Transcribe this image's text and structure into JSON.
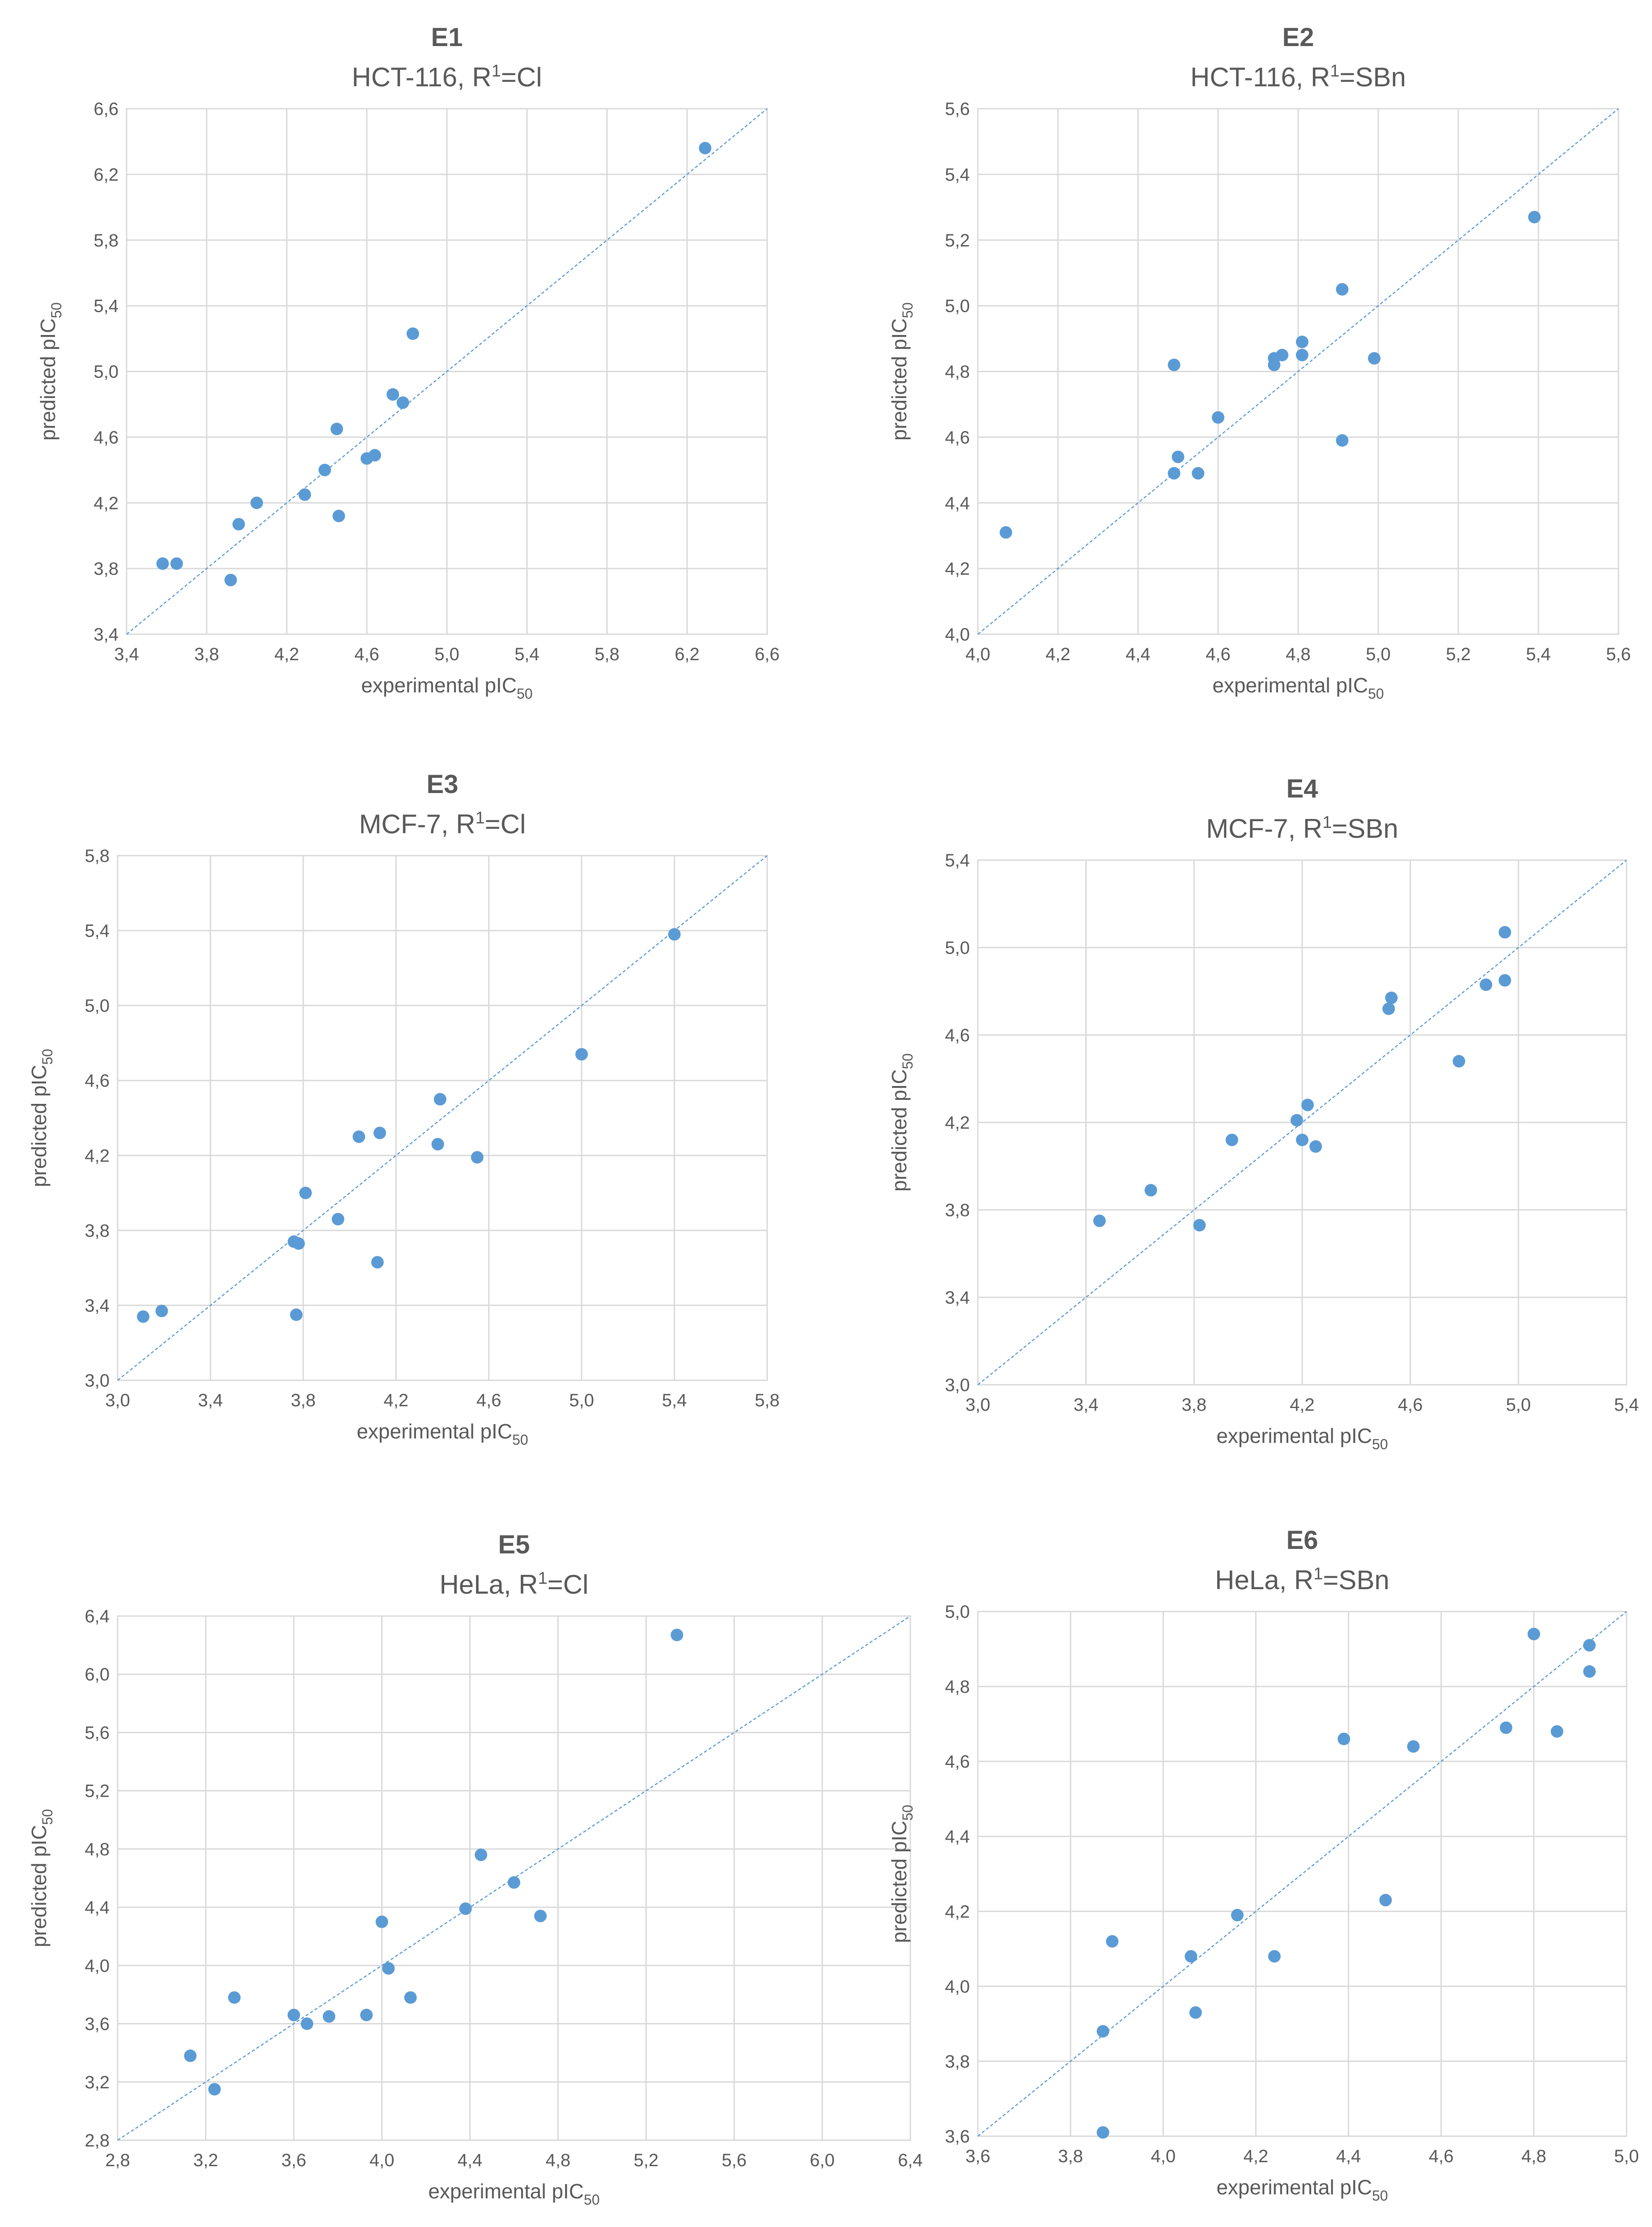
{
  "chart_data": [
    {
      "id": "E1",
      "subtitle_prefix": "HCT-116, R",
      "superscript": "1",
      "subtitle_suffix": "=Cl",
      "type": "scatter",
      "xlabel": "experimental pIC",
      "ylabel": "predicted pIC",
      "label_subscript": "50",
      "xlim": [
        3.4,
        6.6
      ],
      "ylim": [
        3.4,
        6.6
      ],
      "xticks": [
        "3,4",
        "3,8",
        "4,2",
        "4,6",
        "5,0",
        "5,4",
        "5,8",
        "6,2",
        "6,6"
      ],
      "yticks": [
        "3,4",
        "3,8",
        "4,2",
        "4,6",
        "5,0",
        "5,4",
        "5,8",
        "6,2",
        "6,6"
      ],
      "points": [
        [
          3.58,
          3.83
        ],
        [
          3.65,
          3.83
        ],
        [
          3.92,
          3.73
        ],
        [
          3.96,
          4.07
        ],
        [
          4.05,
          4.2
        ],
        [
          4.29,
          4.25
        ],
        [
          4.39,
          4.4
        ],
        [
          4.45,
          4.65
        ],
        [
          4.46,
          4.12
        ],
        [
          4.6,
          4.47
        ],
        [
          4.64,
          4.49
        ],
        [
          4.73,
          4.86
        ],
        [
          4.78,
          4.81
        ],
        [
          4.83,
          5.23
        ],
        [
          6.29,
          6.36
        ]
      ]
    },
    {
      "id": "E2",
      "subtitle_prefix": "HCT-116, R",
      "superscript": "1",
      "subtitle_suffix": "=SBn",
      "type": "scatter",
      "xlabel": "experimental pIC",
      "ylabel": "predicted pIC",
      "label_subscript": "50",
      "xlim": [
        4.0,
        5.6
      ],
      "ylim": [
        4.0,
        5.6
      ],
      "xticks": [
        "4,0",
        "4,2",
        "4,4",
        "4,6",
        "4,8",
        "5,0",
        "5,2",
        "5,4",
        "5,6"
      ],
      "yticks": [
        "4,0",
        "4,2",
        "4,4",
        "4,6",
        "4,8",
        "5,0",
        "5,2",
        "5,4",
        "5,6"
      ],
      "points": [
        [
          4.07,
          4.31
        ],
        [
          4.49,
          4.82
        ],
        [
          4.49,
          4.49
        ],
        [
          4.5,
          4.54
        ],
        [
          4.55,
          4.49
        ],
        [
          4.6,
          4.66
        ],
        [
          4.74,
          4.84
        ],
        [
          4.74,
          4.82
        ],
        [
          4.76,
          4.85
        ],
        [
          4.81,
          4.89
        ],
        [
          4.81,
          4.85
        ],
        [
          4.91,
          5.05
        ],
        [
          4.91,
          4.59
        ],
        [
          4.99,
          4.84
        ],
        [
          5.39,
          5.27
        ]
      ]
    },
    {
      "id": "E3",
      "subtitle_prefix": "MCF-7, R",
      "superscript": "1",
      "subtitle_suffix": "=Cl",
      "type": "scatter",
      "xlabel": "experimental pIC",
      "ylabel": "predicted pIC",
      "label_subscript": "50",
      "xlim": [
        3.0,
        5.8
      ],
      "ylim": [
        3.0,
        5.8
      ],
      "xticks": [
        "3,0",
        "3,4",
        "3,8",
        "4,2",
        "4,6",
        "5,0",
        "5,4",
        "5,8"
      ],
      "yticks": [
        "3,0",
        "3,4",
        "3,8",
        "4,2",
        "4,6",
        "5,0",
        "5,4",
        "5,8"
      ],
      "points": [
        [
          3.11,
          3.34
        ],
        [
          3.19,
          3.37
        ],
        [
          3.76,
          3.74
        ],
        [
          3.77,
          3.35
        ],
        [
          3.78,
          3.73
        ],
        [
          3.81,
          4.0
        ],
        [
          3.95,
          3.86
        ],
        [
          4.04,
          4.3
        ],
        [
          4.12,
          3.63
        ],
        [
          4.13,
          4.32
        ],
        [
          4.38,
          4.26
        ],
        [
          4.39,
          4.5
        ],
        [
          4.55,
          4.19
        ],
        [
          5.0,
          4.74
        ],
        [
          5.4,
          5.38
        ]
      ]
    },
    {
      "id": "E4",
      "subtitle_prefix": "MCF-7, R",
      "superscript": "1",
      "subtitle_suffix": "=SBn",
      "type": "scatter",
      "xlabel": "experimental pIC",
      "ylabel": "predicted pIC",
      "label_subscript": "50",
      "xlim": [
        3.0,
        5.4
      ],
      "ylim": [
        3.0,
        5.4
      ],
      "xticks": [
        "3,0",
        "3,4",
        "3,8",
        "4,2",
        "4,6",
        "5,0",
        "5,4"
      ],
      "yticks": [
        "3,0",
        "3,4",
        "3,8",
        "4,2",
        "4,6",
        "5,0",
        "5,4"
      ],
      "points": [
        [
          3.45,
          3.75
        ],
        [
          3.64,
          3.89
        ],
        [
          3.82,
          3.73
        ],
        [
          3.94,
          4.12
        ],
        [
          4.18,
          4.21
        ],
        [
          4.2,
          4.12
        ],
        [
          4.22,
          4.28
        ],
        [
          4.25,
          4.09
        ],
        [
          4.52,
          4.72
        ],
        [
          4.53,
          4.77
        ],
        [
          4.78,
          4.48
        ],
        [
          4.88,
          4.83
        ],
        [
          4.95,
          4.85
        ],
        [
          4.95,
          5.07
        ]
      ]
    },
    {
      "id": "E5",
      "subtitle_prefix": "HeLa, R",
      "superscript": "1",
      "subtitle_suffix": "=Cl",
      "type": "scatter",
      "xlabel": "experimental pIC",
      "ylabel": "predicted pIC",
      "label_subscript": "50",
      "xlim": [
        2.8,
        6.4
      ],
      "ylim": [
        2.8,
        6.4
      ],
      "xticks": [
        "2,8",
        "3,2",
        "3,6",
        "4,0",
        "4,4",
        "4,8",
        "5,2",
        "5,6",
        "6,0",
        "6,4"
      ],
      "yticks": [
        "2,8",
        "3,2",
        "3,6",
        "4,0",
        "4,4",
        "4,8",
        "5,2",
        "5,6",
        "6,0",
        "6,4"
      ],
      "points": [
        [
          3.13,
          3.38
        ],
        [
          3.24,
          3.15
        ],
        [
          3.33,
          3.78
        ],
        [
          3.6,
          3.66
        ],
        [
          3.66,
          3.6
        ],
        [
          3.76,
          3.65
        ],
        [
          3.93,
          3.66
        ],
        [
          4.0,
          4.3
        ],
        [
          4.03,
          3.98
        ],
        [
          4.13,
          3.78
        ],
        [
          4.38,
          4.39
        ],
        [
          4.45,
          4.76
        ],
        [
          4.6,
          4.57
        ],
        [
          4.72,
          4.34
        ],
        [
          5.34,
          6.27
        ]
      ]
    },
    {
      "id": "E6",
      "subtitle_prefix": "HeLa, R",
      "superscript": "1",
      "subtitle_suffix": "=SBn",
      "type": "scatter",
      "xlabel": "experimental pIC",
      "ylabel": "predicted pIC",
      "label_subscript": "50",
      "xlim": [
        3.6,
        5.0
      ],
      "ylim": [
        3.6,
        5.0
      ],
      "xticks": [
        "3,6",
        "3,8",
        "4,0",
        "4,2",
        "4,4",
        "4,6",
        "4,8",
        "5,0"
      ],
      "yticks": [
        "3,6",
        "3,8",
        "4,0",
        "4,2",
        "4,4",
        "4,6",
        "4,8",
        "5,0"
      ],
      "points": [
        [
          3.87,
          3.61
        ],
        [
          3.87,
          3.88
        ],
        [
          3.89,
          4.12
        ],
        [
          4.06,
          4.08
        ],
        [
          4.07,
          3.93
        ],
        [
          4.16,
          4.19
        ],
        [
          4.24,
          4.08
        ],
        [
          4.39,
          4.66
        ],
        [
          4.48,
          4.23
        ],
        [
          4.54,
          4.64
        ],
        [
          4.74,
          4.69
        ],
        [
          4.8,
          4.94
        ],
        [
          4.85,
          4.68
        ],
        [
          4.92,
          4.91
        ],
        [
          4.92,
          4.84
        ]
      ]
    }
  ],
  "colors": {
    "marker": "#5b9bd5",
    "grid": "#d9d9d9",
    "text": "#595959"
  }
}
